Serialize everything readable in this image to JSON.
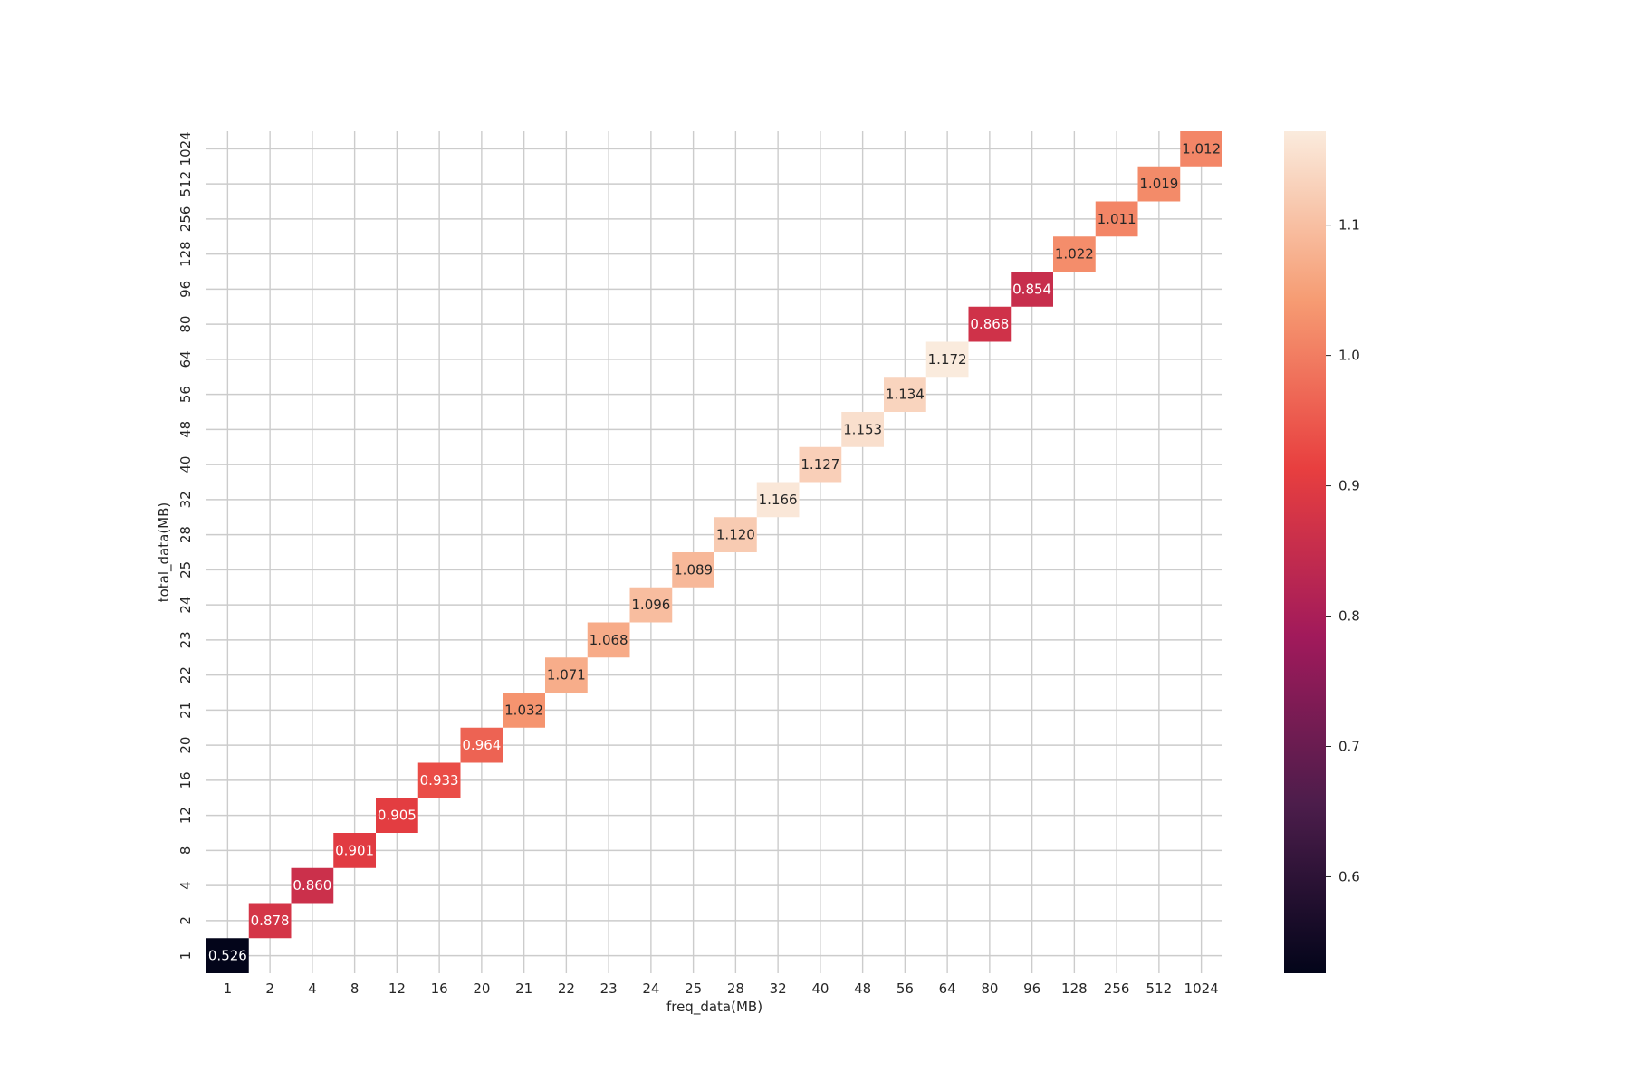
{
  "chart_data": {
    "type": "heatmap",
    "title": "",
    "xlabel": "freq_data(MB)",
    "ylabel": "total_data(MB)",
    "x_categories": [
      "1",
      "2",
      "4",
      "8",
      "12",
      "16",
      "20",
      "21",
      "22",
      "23",
      "24",
      "25",
      "28",
      "32",
      "40",
      "48",
      "56",
      "64",
      "80",
      "96",
      "128",
      "256",
      "512",
      "1024"
    ],
    "y_categories": [
      "1",
      "2",
      "4",
      "8",
      "12",
      "16",
      "20",
      "21",
      "22",
      "23",
      "24",
      "25",
      "28",
      "32",
      "40",
      "48",
      "56",
      "64",
      "80",
      "96",
      "128",
      "256",
      "512",
      "1024"
    ],
    "cells": [
      {
        "x": "1",
        "y": "1",
        "value": 0.526,
        "label": "0.526"
      },
      {
        "x": "2",
        "y": "2",
        "value": 0.878,
        "label": "0.878"
      },
      {
        "x": "4",
        "y": "4",
        "value": 0.86,
        "label": "0.860"
      },
      {
        "x": "8",
        "y": "8",
        "value": 0.901,
        "label": "0.901"
      },
      {
        "x": "12",
        "y": "12",
        "value": 0.905,
        "label": "0.905"
      },
      {
        "x": "16",
        "y": "16",
        "value": 0.933,
        "label": "0.933"
      },
      {
        "x": "20",
        "y": "20",
        "value": 0.964,
        "label": "0.964"
      },
      {
        "x": "21",
        "y": "21",
        "value": 1.032,
        "label": "1.032"
      },
      {
        "x": "22",
        "y": "22",
        "value": 1.071,
        "label": "1.071"
      },
      {
        "x": "23",
        "y": "23",
        "value": 1.068,
        "label": "1.068"
      },
      {
        "x": "24",
        "y": "24",
        "value": 1.096,
        "label": "1.096"
      },
      {
        "x": "25",
        "y": "25",
        "value": 1.089,
        "label": "1.089"
      },
      {
        "x": "28",
        "y": "28",
        "value": 1.12,
        "label": "1.120"
      },
      {
        "x": "32",
        "y": "32",
        "value": 1.166,
        "label": "1.166"
      },
      {
        "x": "40",
        "y": "40",
        "value": 1.127,
        "label": "1.127"
      },
      {
        "x": "48",
        "y": "48",
        "value": 1.153,
        "label": "1.153"
      },
      {
        "x": "56",
        "y": "56",
        "value": 1.134,
        "label": "1.134"
      },
      {
        "x": "64",
        "y": "64",
        "value": 1.172,
        "label": "1.172"
      },
      {
        "x": "80",
        "y": "80",
        "value": 0.868,
        "label": "0.868"
      },
      {
        "x": "96",
        "y": "96",
        "value": 0.854,
        "label": "0.854"
      },
      {
        "x": "128",
        "y": "128",
        "value": 1.022,
        "label": "1.022"
      },
      {
        "x": "256",
        "y": "256",
        "value": 1.011,
        "label": "1.011"
      },
      {
        "x": "512",
        "y": "512",
        "value": 1.019,
        "label": "1.019"
      },
      {
        "x": "1024",
        "y": "1024",
        "value": 1.012,
        "label": "1.012"
      }
    ],
    "colorbar": {
      "range": [
        0.526,
        1.172
      ],
      "ticks": [
        0.6,
        0.7,
        0.8,
        0.9,
        1.0,
        1.1
      ],
      "tick_labels": [
        "0.6",
        "0.7",
        "0.8",
        "0.9",
        "1.0",
        "1.1"
      ],
      "colormap": "rocket",
      "stops": [
        "#03051a",
        "#4c1d4b",
        "#a11a5b",
        "#e83f3f",
        "#f69c73",
        "#faebdd"
      ]
    },
    "grid": true,
    "grid_color": "#cccccc",
    "legend": "colorbar-right"
  }
}
